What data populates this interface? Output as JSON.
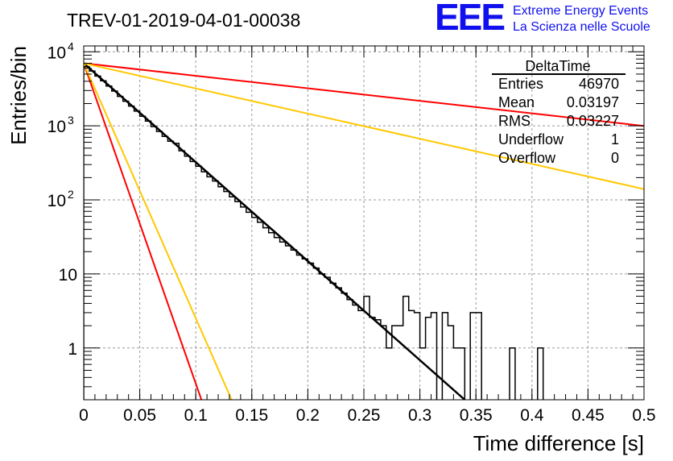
{
  "logo": {
    "mark": "EEE",
    "line1": "Extreme Energy Events",
    "line2": "La Scienza nelle Scuole",
    "color": "#1010ee"
  },
  "chart_data": {
    "type": "histogram",
    "title": "TREV-01-2019-04-01-00038",
    "xlabel": "Time difference [s]",
    "ylabel": "Entries/bin",
    "xlim": [
      0,
      0.5
    ],
    "ylim": [
      0.2,
      12000
    ],
    "y_scale": "log",
    "grid": true,
    "x_ticks": [
      {
        "v": 0,
        "label": "0"
      },
      {
        "v": 0.05,
        "label": "0.05"
      },
      {
        "v": 0.1,
        "label": "0.1"
      },
      {
        "v": 0.15,
        "label": "0.15"
      },
      {
        "v": 0.2,
        "label": "0.2"
      },
      {
        "v": 0.25,
        "label": "0.25"
      },
      {
        "v": 0.3,
        "label": "0.3"
      },
      {
        "v": 0.35,
        "label": "0.35"
      },
      {
        "v": 0.4,
        "label": "0.4"
      },
      {
        "v": 0.45,
        "label": "0.45"
      },
      {
        "v": 0.5,
        "label": "0.5"
      }
    ],
    "y_ticks": [
      {
        "v": 1,
        "base": "1",
        "exp": ""
      },
      {
        "v": 10,
        "base": "10",
        "exp": ""
      },
      {
        "v": 100,
        "base": "10",
        "exp": "2"
      },
      {
        "v": 1000,
        "base": "10",
        "exp": "3"
      },
      {
        "v": 10000,
        "base": "10",
        "exp": "4"
      }
    ],
    "bin_width": 0.005,
    "histogram": {
      "name": "DeltaTime",
      "color": "#000000",
      "bin_start": 0,
      "values": [
        6300,
        5500,
        4700,
        4050,
        3450,
        2950,
        2500,
        2150,
        1850,
        1580,
        1350,
        1160,
        980,
        840,
        720,
        620,
        580,
        460,
        390,
        330,
        285,
        240,
        205,
        180,
        150,
        130,
        110,
        95,
        80,
        68,
        58,
        50,
        42,
        36,
        31,
        27,
        24,
        21,
        18,
        16,
        14,
        12,
        10,
        9,
        7.5,
        6.5,
        5.5,
        4.5,
        3.8,
        3.2,
        5,
        2.6,
        2.4,
        2,
        1,
        2,
        2,
        5,
        3.2,
        3,
        1,
        2.6,
        3,
        0,
        3,
        2,
        1,
        1,
        0,
        3,
        3,
        0,
        0,
        0,
        0,
        0,
        1,
        0,
        0,
        0,
        0,
        1,
        0,
        0,
        0,
        0,
        0,
        0,
        0,
        0,
        0,
        0,
        0,
        0,
        0,
        0,
        0,
        0,
        0,
        0
      ]
    },
    "fit_lines": [
      {
        "name": "",
        "color": "#000000",
        "points": [
          [
            0,
            7000
          ],
          [
            0.34,
            0.2
          ]
        ]
      },
      {
        "name": "",
        "color": "#ff0000",
        "points": [
          [
            0,
            7000
          ],
          [
            0.5,
            1000
          ]
        ]
      },
      {
        "name": "",
        "color": "#ff0000",
        "points": [
          [
            0,
            7000
          ],
          [
            0.105,
            0.2
          ]
        ]
      },
      {
        "name": "",
        "color": "#ffc800",
        "points": [
          [
            0,
            7000
          ],
          [
            0.5,
            140
          ]
        ]
      },
      {
        "name": "",
        "color": "#ffc800",
        "points": [
          [
            0,
            7000
          ],
          [
            0.132,
            0.2
          ]
        ]
      }
    ],
    "stats_box": {
      "title": "DeltaTime",
      "rows": [
        {
          "label": "Entries",
          "value": "46970"
        },
        {
          "label": "Mean",
          "value": "0.03197"
        },
        {
          "label": "RMS",
          "value": "0.03227"
        },
        {
          "label": "Underflow",
          "value": "1"
        },
        {
          "label": "Overflow",
          "value": "0"
        }
      ]
    }
  }
}
